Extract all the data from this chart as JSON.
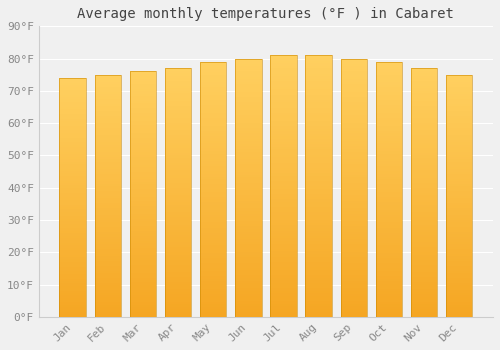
{
  "title": "Average monthly temperatures (°F ) in Cabaret",
  "months": [
    "Jan",
    "Feb",
    "Mar",
    "Apr",
    "May",
    "Jun",
    "Jul",
    "Aug",
    "Sep",
    "Oct",
    "Nov",
    "Dec"
  ],
  "values": [
    74,
    75,
    76,
    77,
    79,
    80,
    81,
    81,
    80,
    79,
    77,
    75
  ],
  "ylim": [
    0,
    90
  ],
  "yticks": [
    0,
    10,
    20,
    30,
    40,
    50,
    60,
    70,
    80,
    90
  ],
  "ytick_labels": [
    "0°F",
    "10°F",
    "20°F",
    "30°F",
    "40°F",
    "50°F",
    "60°F",
    "70°F",
    "80°F",
    "90°F"
  ],
  "background_color": "#f0f0f0",
  "grid_color": "#ffffff",
  "bar_color_bottom": "#F5A623",
  "bar_color_top": "#FFD060",
  "title_fontsize": 10,
  "tick_fontsize": 8,
  "bar_width": 0.75,
  "spine_color": "#cccccc",
  "tick_color": "#888888"
}
